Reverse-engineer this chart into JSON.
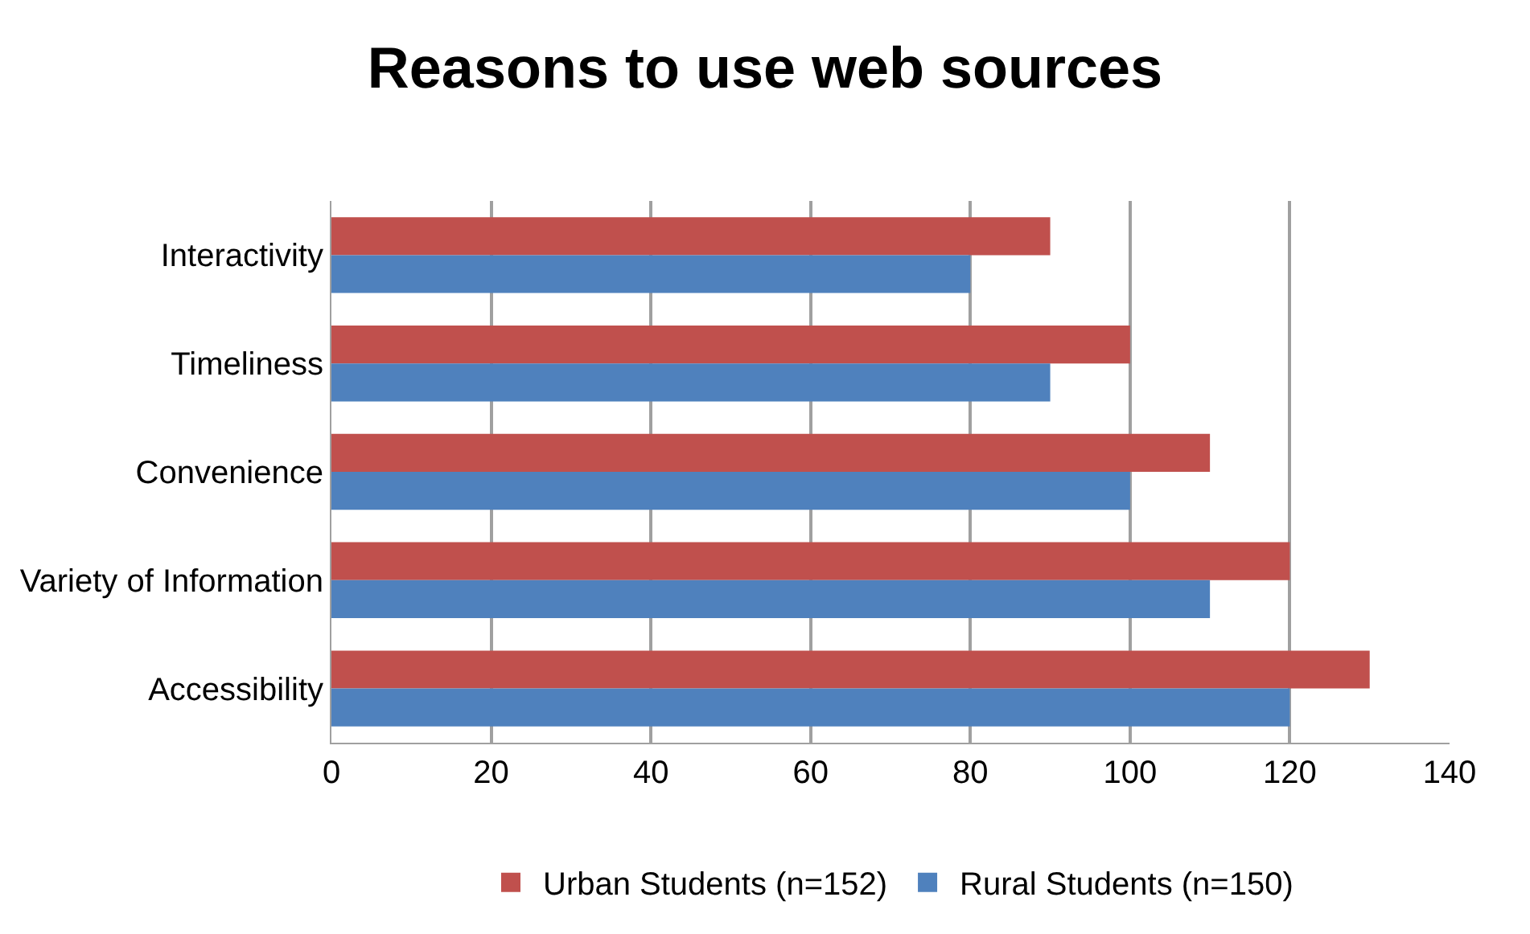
{
  "chart_data": {
    "type": "bar",
    "orientation": "horizontal",
    "title": "Reasons to use web sources",
    "categories": [
      "Interactivity",
      "Timeliness",
      "Convenience",
      "Variety of Information",
      "Accessibility"
    ],
    "series": [
      {
        "name": "Urban Students (n=152)",
        "color": "#c0504d",
        "values": [
          90,
          100,
          110,
          120,
          130
        ]
      },
      {
        "name": "Rural Students (n=150)",
        "color": "#4f81bd",
        "values": [
          80,
          90,
          100,
          110,
          120
        ]
      }
    ],
    "xlim": [
      0,
      140
    ],
    "xticks": [
      0,
      20,
      40,
      60,
      80,
      100,
      120,
      140
    ],
    "grid": "x",
    "legend": "bottom"
  }
}
